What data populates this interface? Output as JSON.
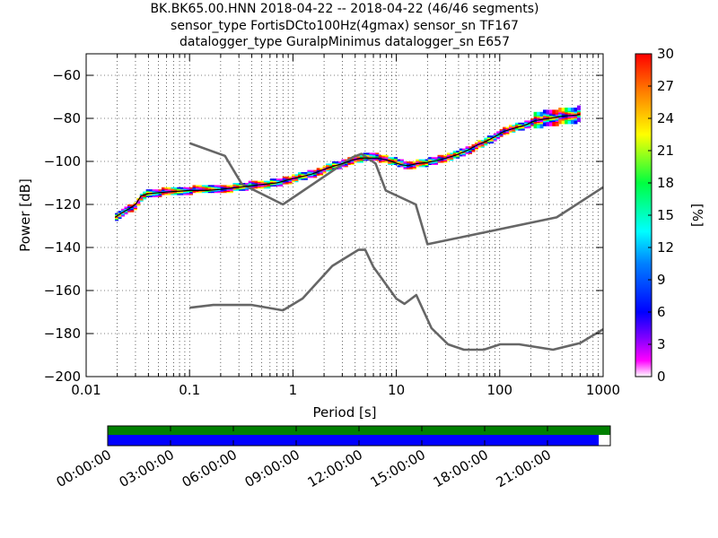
{
  "title_lines": [
    "BK.BK65.00.HNN   2018-04-22 -- 2018-04-22  (46/46 segments)",
    "sensor_type FortisDCto100Hz(4gmax) sensor_sn TF167",
    "datalogger_type GuralpMinimus datalogger_sn E657"
  ],
  "chart_data": {
    "type": "heatmap",
    "xlabel": "Period [s]",
    "ylabel": "Power [dB]",
    "x_scale": "log",
    "xlim": [
      0.01,
      1000
    ],
    "ylim": [
      -200,
      -50
    ],
    "x_ticks": [
      0.01,
      0.1,
      1,
      10,
      100,
      1000
    ],
    "x_tick_labels": [
      "0.01",
      "0.1",
      "1",
      "10",
      "100",
      "1000"
    ],
    "y_ticks": [
      -200,
      -180,
      -160,
      -140,
      -120,
      -100,
      -80,
      -60
    ],
    "y_tick_labels": [
      "−200",
      "−180",
      "−160",
      "−140",
      "−120",
      "−100",
      "−80",
      "−60"
    ],
    "grid": true,
    "colorbar": {
      "label": "[%]",
      "range": [
        0,
        30
      ],
      "ticks": [
        0,
        3,
        6,
        9,
        12,
        15,
        18,
        21,
        24,
        27,
        30
      ],
      "tick_labels": [
        "0",
        "3",
        "6",
        "9",
        "12",
        "15",
        "18",
        "21",
        "24",
        "27",
        "30"
      ]
    },
    "psd_mode": {
      "period": [
        0.019,
        0.022,
        0.026,
        0.03,
        0.034,
        0.04,
        0.05,
        0.07,
        0.1,
        0.15,
        0.2,
        0.3,
        0.45,
        0.7,
        1.0,
        1.5,
        2.2,
        3.0,
        3.7,
        4.5,
        5.5,
        6.5,
        7.5,
        9.0,
        11,
        13,
        16,
        20,
        25,
        30,
        38,
        48,
        60,
        75,
        90,
        110,
        140,
        180,
        220,
        300,
        400,
        550,
        600
      ],
      "power": [
        -126,
        -124,
        -122,
        -120,
        -116,
        -115,
        -114.5,
        -114,
        -113.5,
        -113.5,
        -113,
        -112,
        -111,
        -110,
        -108,
        -106,
        -103,
        -101,
        -99.5,
        -98.5,
        -98.5,
        -98.5,
        -99,
        -100,
        -101.5,
        -102,
        -101,
        -100.5,
        -99.5,
        -98.5,
        -97,
        -95,
        -92.5,
        -90.5,
        -88.5,
        -86,
        -84.5,
        -83,
        -81,
        -80,
        -79,
        -78.5,
        -78
      ]
    },
    "nhnm": {
      "period": [
        0.1,
        0.22,
        0.32,
        0.8,
        3.8,
        4.6,
        6.3,
        7.9,
        15.4,
        20,
        354.8,
        1000
      ],
      "power": [
        -91.5,
        -97.4,
        -110.5,
        -120,
        -98,
        -96.5,
        -101,
        -113.5,
        -120,
        -138.5,
        -126,
        -112
      ]
    },
    "nlnm": {
      "period": [
        0.1,
        0.17,
        0.4,
        0.8,
        1.24,
        2.4,
        4.3,
        5.0,
        6.0,
        10.0,
        12.0,
        15.6,
        21.9,
        31.6,
        45,
        70,
        101,
        154,
        328,
        600,
        1000
      ],
      "power": [
        -168,
        -166.7,
        -166.7,
        -169.2,
        -163.7,
        -148.6,
        -141.1,
        -141.1,
        -149,
        -163.8,
        -166.2,
        -162.1,
        -177.5,
        -185,
        -187.5,
        -187.5,
        -185,
        -185,
        -187.5,
        -184.4,
        -178
      ]
    },
    "segment_timeline": {
      "tick_labels": [
        "00:00:00",
        "03:00:00",
        "06:00:00",
        "09:00:00",
        "12:00:00",
        "15:00:00",
        "18:00:00",
        "21:00:00"
      ],
      "tick_hours": [
        0,
        3,
        6,
        9,
        12,
        15,
        18,
        21
      ],
      "range_hours": [
        0,
        24
      ],
      "data_coverage_hours": [
        0,
        24
      ],
      "psd_coverage_hours": [
        0,
        23.45
      ],
      "data_color": "#008000",
      "psd_color": "#0000ff"
    }
  }
}
